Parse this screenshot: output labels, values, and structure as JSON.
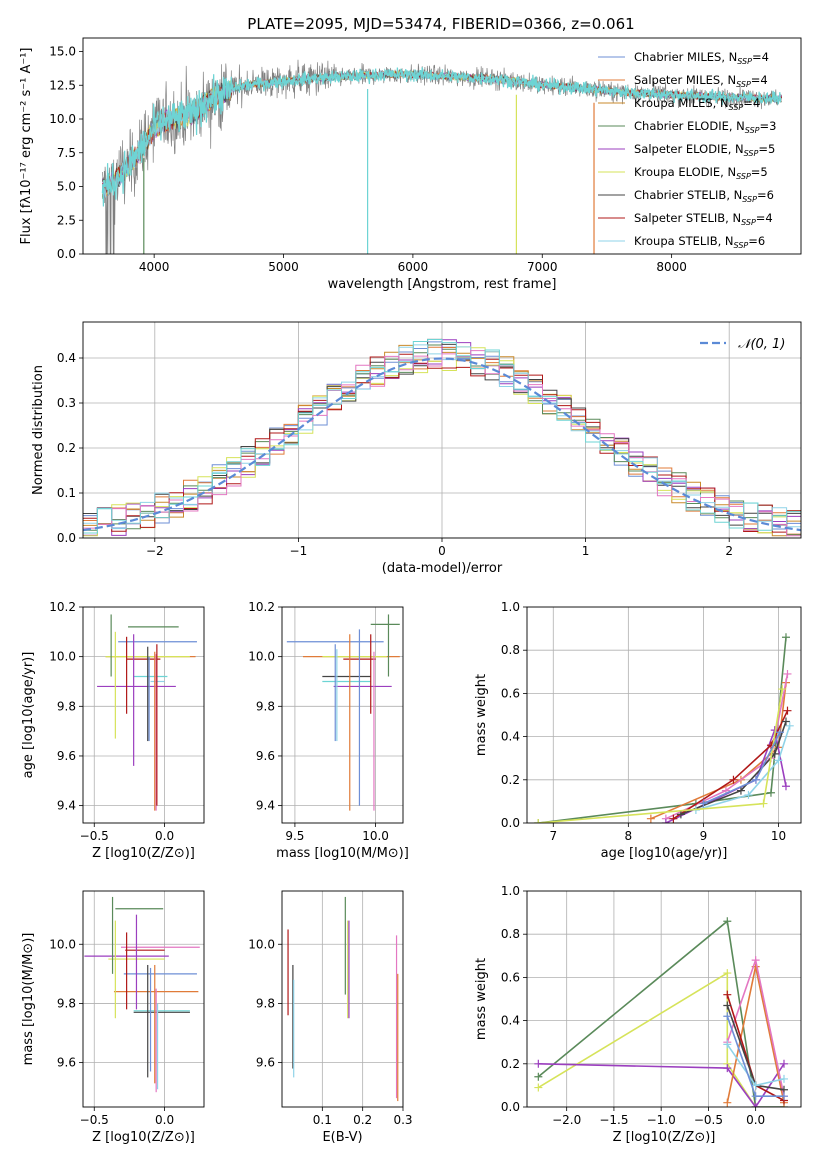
{
  "title": "PLATE=2095, MJD=53474, FIBERID=0366, z=0.061",
  "colors": {
    "chabrier_miles": "#6e8fd6",
    "salpeter_miles": "#e07b39",
    "kroupa_miles": "#c98a2b",
    "chabrier_elodie": "#5a8a5a",
    "salpeter_elodie": "#9b3fbf",
    "kroupa_elodie": "#d6e35a",
    "chabrier_stelib": "#444444",
    "salpeter_stelib": "#b01818",
    "kroupa_stelib": "#8fd3e8",
    "data": "#808080",
    "pink": "#e377c2",
    "cyan": "#6dd4d4",
    "normal_curve": "#5b8ad6"
  },
  "chart_data": [
    {
      "id": "spectrum",
      "type": "line",
      "title": "PLATE=2095, MJD=53474, FIBERID=0366, z=0.061",
      "xlabel": "wavelength [Angstrom, rest frame]",
      "ylabel": "Flux [fλ10⁻¹⁷ erg cm⁻² s⁻¹ A⁻¹]",
      "xlim": [
        3450,
        9000
      ],
      "ylim": [
        0,
        16
      ],
      "xticks": [
        "4000",
        "5000",
        "6000",
        "7000",
        "8000"
      ],
      "yticks": [
        "0.0",
        "2.5",
        "5.0",
        "7.5",
        "10.0",
        "12.5",
        "15.0"
      ],
      "legend_position": "top-right",
      "legend": [
        "Chabrier MILES, N_SSP=4",
        "Salpeter MILES, N_SSP=4",
        "Kroupa MILES, N_SSP=4",
        "Chabrier ELODIE, N_SSP=3",
        "Salpeter ELODIE, N_SSP=5",
        "Kroupa ELODIE, N_SSP=5",
        "Chabrier STELIB, N_SSP=6",
        "Salpeter STELIB, N_SSP=4",
        "Kroupa STELIB, N_SSP=6"
      ],
      "continuum": {
        "x": [
          3600,
          3700,
          3800,
          3900,
          4000,
          4100,
          4200,
          4300,
          4400,
          4500,
          4600,
          4700,
          4800,
          5000,
          5200,
          5400,
          5600,
          5800,
          6000,
          6200,
          6400,
          6600,
          6800,
          7000,
          7200,
          7400,
          7600,
          7800,
          8000,
          8200,
          8400,
          8600,
          8800
        ],
        "y": [
          4.8,
          5.5,
          6.5,
          7.8,
          9.3,
          9.9,
          10.1,
          10.4,
          11.2,
          11.8,
          12.2,
          12.5,
          12.6,
          12.8,
          13.0,
          13.1,
          13.2,
          13.3,
          13.3,
          13.2,
          13.1,
          13.0,
          12.8,
          12.5,
          12.4,
          12.2,
          12.0,
          11.9,
          11.8,
          11.7,
          11.6,
          11.6,
          11.5
        ]
      }
    },
    {
      "id": "residuals",
      "type": "step",
      "xlabel": "(data-model)/error",
      "ylabel": "Normed distribution",
      "xlim": [
        -2.5,
        2.5
      ],
      "ylim": [
        0,
        0.48
      ],
      "xticks": [
        "−2",
        "−1",
        "0",
        "1",
        "2"
      ],
      "yticks": [
        "0.0",
        "0.1",
        "0.2",
        "0.3",
        "0.4"
      ],
      "legend_position": "top-right",
      "legend": [
        "𝒩(0, 1)"
      ],
      "bin_edges_start": -2.5,
      "bin_width": 0.1
    },
    {
      "id": "age_vs_Z",
      "type": "errorbar",
      "xlabel": "Z [log10(Z/Z⊙)]",
      "ylabel": "age  [log10(age/yr)]",
      "xlim": [
        -0.58,
        0.28
      ],
      "ylim": [
        9.33,
        10.2
      ],
      "xticks": [
        "−0.5",
        "0.0"
      ],
      "yticks": [
        "9.4",
        "9.6",
        "9.8",
        "10.0",
        "10.2"
      ],
      "points": [
        {
          "x": -0.05,
          "y": 10.06,
          "xerr": 0.28,
          "yerr": 0.0,
          "color": "chabrier_miles"
        },
        {
          "x": -0.1,
          "y": 10.0,
          "xerr": 0.32,
          "yerr": 0.0,
          "color": "salpeter_miles"
        },
        {
          "x": -0.08,
          "y": 10.12,
          "xerr": 0.18,
          "yerr": 0.0,
          "color": "chabrier_elodie"
        },
        {
          "x": -0.2,
          "y": 9.88,
          "xerr": 0.28,
          "yerr": 0.0,
          "color": "salpeter_elodie"
        },
        {
          "x": -0.12,
          "y": 10.0,
          "xerr": 0.3,
          "yerr": 0.0,
          "color": "kroupa_elodie"
        },
        {
          "x": -0.15,
          "y": 9.99,
          "xerr": 0.12,
          "yerr": 0.0,
          "color": "salpeter_stelib"
        },
        {
          "x": -0.1,
          "y": 9.92,
          "xerr": 0.12,
          "yerr": 0.0,
          "color": "cyan"
        },
        {
          "x": -0.05,
          "y": 9.9,
          "xerr": 0.05,
          "yerr": 0.0,
          "color": "kroupa_stelib"
        }
      ],
      "vbars": [
        {
          "x": -0.38,
          "y0": 9.92,
          "y1": 10.17,
          "color": "chabrier_elodie"
        },
        {
          "x": -0.35,
          "y0": 9.67,
          "y1": 10.1,
          "color": "kroupa_elodie"
        },
        {
          "x": -0.27,
          "y0": 9.77,
          "y1": 10.08,
          "color": "salpeter_stelib"
        },
        {
          "x": -0.22,
          "y0": 9.56,
          "y1": 10.09,
          "color": "salpeter_elodie"
        },
        {
          "x": -0.12,
          "y0": 9.66,
          "y1": 10.04,
          "color": "chabrier_stelib"
        },
        {
          "x": -0.11,
          "y0": 9.66,
          "y1": 10.0,
          "color": "chabrier_miles"
        },
        {
          "x": -0.07,
          "y0": 9.38,
          "y1": 10.02,
          "color": "salpeter_miles"
        },
        {
          "x": -0.06,
          "y0": 9.38,
          "y1": 10.01,
          "color": "pink"
        },
        {
          "x": -0.055,
          "y0": 9.4,
          "y1": 10.05,
          "color": "salpeter_stelib"
        }
      ]
    },
    {
      "id": "age_vs_mass",
      "type": "errorbar",
      "xlabel": "mass [log10(M/M⊙)]",
      "xlim": [
        9.42,
        10.17
      ],
      "ylim": [
        9.33,
        10.2
      ],
      "xticks": [
        "9.5",
        "10.0"
      ],
      "yticks": [
        "9.4",
        "9.6",
        "9.8",
        "10.0",
        "10.2"
      ],
      "points": [
        {
          "x": 9.75,
          "y": 10.06,
          "xerr": 0.3,
          "yerr": 0.0,
          "color": "chabrier_miles"
        },
        {
          "x": 9.85,
          "y": 10.0,
          "xerr": 0.3,
          "yerr": 0.0,
          "color": "salpeter_miles"
        },
        {
          "x": 10.06,
          "y": 10.13,
          "xerr": 0.09,
          "yerr": 0.0,
          "color": "chabrier_elodie"
        },
        {
          "x": 9.92,
          "y": 9.88,
          "xerr": 0.18,
          "yerr": 0.0,
          "color": "salpeter_elodie"
        },
        {
          "x": 9.87,
          "y": 10.0,
          "xerr": 0.2,
          "yerr": 0.0,
          "color": "kroupa_elodie"
        },
        {
          "x": 9.9,
          "y": 9.99,
          "xerr": 0.1,
          "yerr": 0.0,
          "color": "salpeter_stelib"
        },
        {
          "x": 9.82,
          "y": 9.92,
          "xerr": 0.15,
          "yerr": 0.0,
          "color": "chabrier_stelib"
        },
        {
          "x": 9.82,
          "y": 9.9,
          "xerr": 0.15,
          "yerr": 0.0,
          "color": "cyan"
        }
      ],
      "vbars": [
        {
          "x": 10.08,
          "y0": 9.92,
          "y1": 10.17,
          "color": "chabrier_elodie"
        },
        {
          "x": 9.75,
          "y0": 9.66,
          "y1": 10.05,
          "color": "chabrier_miles"
        },
        {
          "x": 9.76,
          "y0": 9.66,
          "y1": 10.03,
          "color": "kroupa_stelib"
        },
        {
          "x": 9.84,
          "y0": 9.38,
          "y1": 10.09,
          "color": "salpeter_miles"
        },
        {
          "x": 9.9,
          "y0": 9.4,
          "y1": 10.11,
          "color": "chabrier_miles"
        },
        {
          "x": 9.97,
          "y0": 9.77,
          "y1": 10.09,
          "color": "salpeter_stelib"
        },
        {
          "x": 9.99,
          "y0": 9.38,
          "y1": 10.02,
          "color": "pink"
        }
      ]
    },
    {
      "id": "massweight_vs_age",
      "type": "line",
      "xlabel": "age  [log10(age/yr)]",
      "ylabel": "mass weight",
      "xlim": [
        6.65,
        10.3
      ],
      "ylim": [
        0,
        1.0
      ],
      "xticks": [
        "7",
        "8",
        "9",
        "10"
      ],
      "yticks": [
        "0.0",
        "0.2",
        "0.4",
        "0.6",
        "0.8",
        "1.0"
      ],
      "series": [
        {
          "color": "chabrier_elodie",
          "x": [
            6.8,
            8.9,
            9.9,
            10.1
          ],
          "y": [
            0.0,
            0.09,
            0.14,
            0.86
          ]
        },
        {
          "color": "salpeter_miles",
          "x": [
            8.3,
            9.5,
            10.0,
            10.1
          ],
          "y": [
            0.02,
            0.2,
            0.35,
            0.65
          ]
        },
        {
          "color": "pink",
          "x": [
            8.5,
            9.3,
            9.9,
            10.12
          ],
          "y": [
            0.02,
            0.15,
            0.3,
            0.69
          ]
        },
        {
          "color": "salpeter_elodie",
          "x": [
            8.5,
            9.7,
            9.95,
            10.1
          ],
          "y": [
            0.0,
            0.2,
            0.43,
            0.17
          ]
        },
        {
          "color": "salpeter_stelib",
          "x": [
            8.6,
            9.4,
            9.9,
            10.12
          ],
          "y": [
            0.02,
            0.2,
            0.36,
            0.52
          ]
        },
        {
          "color": "chabrier_stelib",
          "x": [
            8.7,
            9.5,
            9.95,
            10.1
          ],
          "y": [
            0.04,
            0.15,
            0.32,
            0.47
          ]
        },
        {
          "color": "kroupa_stelib",
          "x": [
            8.9,
            9.6,
            10.0,
            10.15
          ],
          "y": [
            0.06,
            0.13,
            0.29,
            0.45
          ]
        },
        {
          "color": "kroupa_elodie",
          "x": [
            6.8,
            9.8,
            10.05
          ],
          "y": [
            0.0,
            0.09,
            0.62
          ]
        },
        {
          "color": "chabrier_miles",
          "x": [
            9.0,
            9.7,
            10.02
          ],
          "y": [
            0.09,
            0.2,
            0.42
          ]
        }
      ]
    },
    {
      "id": "mass_vs_Z",
      "type": "errorbar",
      "xlabel": "Z [log10(Z/Z⊙)]",
      "ylabel": "mass [log10(M/M⊙)]",
      "xlim": [
        -0.58,
        0.28
      ],
      "ylim": [
        9.45,
        10.18
      ],
      "xticks": [
        "−0.5",
        "0.0"
      ],
      "yticks": [
        "9.6",
        "9.8",
        "10.0"
      ],
      "points": [
        {
          "x": -0.18,
          "y": 10.12,
          "xerr": 0.17,
          "yerr": 0.0,
          "color": "chabrier_elodie"
        },
        {
          "x": -0.03,
          "y": 9.99,
          "xerr": 0.28,
          "yerr": 0.0,
          "color": "pink"
        },
        {
          "x": -0.14,
          "y": 9.98,
          "xerr": 0.14,
          "yerr": 0.0,
          "color": "salpeter_stelib"
        },
        {
          "x": -0.27,
          "y": 9.96,
          "xerr": 0.3,
          "yerr": 0.0,
          "color": "salpeter_elodie"
        },
        {
          "x": -0.2,
          "y": 9.95,
          "xerr": 0.2,
          "yerr": 0.0,
          "color": "kroupa_elodie"
        },
        {
          "x": -0.03,
          "y": 9.9,
          "xerr": 0.26,
          "yerr": 0.0,
          "color": "chabrier_miles"
        },
        {
          "x": -0.06,
          "y": 9.84,
          "xerr": 0.3,
          "yerr": 0.0,
          "color": "salpeter_miles"
        },
        {
          "x": -0.02,
          "y": 9.775,
          "xerr": 0.2,
          "yerr": 0.0,
          "color": "cyan"
        },
        {
          "x": -0.02,
          "y": 9.77,
          "xerr": 0.2,
          "yerr": 0.0,
          "color": "chabrier_stelib"
        }
      ],
      "vbars": [
        {
          "x": -0.37,
          "y0": 9.9,
          "y1": 10.16,
          "color": "chabrier_elodie"
        },
        {
          "x": -0.35,
          "y0": 9.75,
          "y1": 10.08,
          "color": "kroupa_elodie"
        },
        {
          "x": -0.27,
          "y0": 9.78,
          "y1": 10.04,
          "color": "salpeter_stelib"
        },
        {
          "x": -0.2,
          "y0": 9.78,
          "y1": 10.1,
          "color": "salpeter_elodie"
        },
        {
          "x": -0.12,
          "y0": 9.55,
          "y1": 9.93,
          "color": "chabrier_stelib"
        },
        {
          "x": -0.1,
          "y0": 9.57,
          "y1": 9.92,
          "color": "chabrier_miles"
        },
        {
          "x": -0.07,
          "y0": 9.53,
          "y1": 9.93,
          "color": "salpeter_miles"
        },
        {
          "x": -0.06,
          "y0": 9.5,
          "y1": 9.85,
          "color": "pink"
        },
        {
          "x": -0.05,
          "y0": 9.51,
          "y1": 9.8,
          "color": "kroupa_stelib"
        }
      ]
    },
    {
      "id": "mass_vs_ebv",
      "type": "errorbar",
      "xlabel": "E(B-V)",
      "xlim": [
        0.0,
        0.3
      ],
      "ylim": [
        9.45,
        10.18
      ],
      "xticks": [
        "0.1",
        "0.2",
        "0.3"
      ],
      "yticks": [
        "9.6",
        "9.8",
        "10.0"
      ],
      "vbars": [
        {
          "x": 0.015,
          "y0": 9.76,
          "y1": 10.05,
          "color": "salpeter_stelib"
        },
        {
          "x": 0.027,
          "y0": 9.58,
          "y1": 9.93,
          "color": "chabrier_stelib"
        },
        {
          "x": 0.029,
          "y0": 9.55,
          "y1": 9.88,
          "color": "kroupa_stelib"
        },
        {
          "x": 0.157,
          "y0": 9.83,
          "y1": 10.16,
          "color": "chabrier_elodie"
        },
        {
          "x": 0.163,
          "y0": 9.75,
          "y1": 10.08,
          "color": "kroupa_elodie"
        },
        {
          "x": 0.166,
          "y0": 9.75,
          "y1": 10.08,
          "color": "salpeter_elodie"
        },
        {
          "x": 0.284,
          "y0": 9.48,
          "y1": 10.03,
          "color": "pink"
        },
        {
          "x": 0.287,
          "y0": 9.47,
          "y1": 9.9,
          "color": "salpeter_miles"
        }
      ]
    },
    {
      "id": "massweight_vs_Z",
      "type": "line",
      "xlabel": "Z [log10(Z/Z⊙)]",
      "ylabel": "mass weight",
      "xlim": [
        -2.42,
        0.48
      ],
      "ylim": [
        0,
        1.0
      ],
      "xticks": [
        "−2.0",
        "−1.5",
        "−1.0",
        "−0.5",
        "0.0"
      ],
      "yticks": [
        "0.0",
        "0.2",
        "0.4",
        "0.6",
        "0.8",
        "1.0"
      ],
      "series": [
        {
          "color": "chabrier_elodie",
          "x": [
            -2.3,
            -0.3,
            0.0,
            0.3
          ],
          "y": [
            0.14,
            0.86,
            0.0,
            0.0
          ]
        },
        {
          "color": "kroupa_elodie",
          "x": [
            -2.3,
            -0.3,
            -0.3,
            0.0
          ],
          "y": [
            0.09,
            0.62,
            0.2,
            0.0
          ]
        },
        {
          "color": "salpeter_elodie",
          "x": [
            -2.3,
            -0.3,
            0.0,
            0.3
          ],
          "y": [
            0.2,
            0.18,
            0.0,
            0.2
          ]
        },
        {
          "color": "salpeter_miles",
          "x": [
            -0.3,
            0.0,
            0.3
          ],
          "y": [
            0.02,
            0.65,
            0.02
          ]
        },
        {
          "color": "pink",
          "x": [
            -0.3,
            0.0,
            0.3
          ],
          "y": [
            0.3,
            0.68,
            0.05
          ]
        },
        {
          "color": "salpeter_stelib",
          "x": [
            -0.3,
            0.0,
            0.3
          ],
          "y": [
            0.52,
            0.1,
            0.03
          ]
        },
        {
          "color": "chabrier_stelib",
          "x": [
            -0.3,
            0.0,
            0.3
          ],
          "y": [
            0.47,
            0.1,
            0.08
          ]
        },
        {
          "color": "kroupa_stelib",
          "x": [
            -0.3,
            0.0,
            0.3
          ],
          "y": [
            0.29,
            0.1,
            0.13
          ]
        },
        {
          "color": "chabrier_miles",
          "x": [
            -0.3,
            0.0,
            0.3
          ],
          "y": [
            0.42,
            0.05,
            0.05
          ]
        }
      ]
    }
  ]
}
